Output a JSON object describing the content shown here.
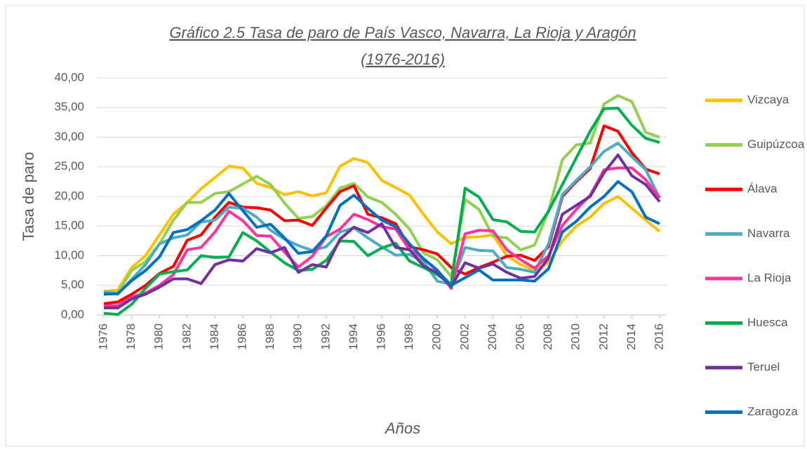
{
  "chart_data": {
    "type": "line",
    "title": [
      "Gráfico 2.5  Tasa de paro de País Vasco, Navarra, La Rioja y Aragón",
      "(1976-2016)"
    ],
    "x_label": "Años",
    "y_label": "Tasa de paro",
    "x": [
      1976,
      1977,
      1978,
      1979,
      1980,
      1981,
      1982,
      1983,
      1984,
      1985,
      1986,
      1987,
      1988,
      1989,
      1990,
      1991,
      1992,
      1993,
      1994,
      1995,
      1996,
      1997,
      1998,
      1999,
      2000,
      2001,
      2002,
      2003,
      2004,
      2005,
      2006,
      2007,
      2008,
      2009,
      2010,
      2011,
      2012,
      2013,
      2014,
      2015,
      2016
    ],
    "xlim": [
      1976,
      2016
    ],
    "xticks": [
      1976,
      1978,
      1980,
      1982,
      1984,
      1986,
      1988,
      1990,
      1992,
      1994,
      1996,
      1998,
      2000,
      2002,
      2004,
      2006,
      2008,
      2010,
      2012,
      2014,
      2016
    ],
    "ylim": [
      0,
      40
    ],
    "yticks": [
      {
        "value": 0,
        "label": "0,00"
      },
      {
        "value": 5,
        "label": "5,00"
      },
      {
        "value": 10,
        "label": "10,00"
      },
      {
        "value": 15,
        "label": "15,00"
      },
      {
        "value": 20,
        "label": "20,00"
      },
      {
        "value": 25,
        "label": "25,00"
      },
      {
        "value": 30,
        "label": "30,00"
      },
      {
        "value": 35,
        "label": "35,00"
      },
      {
        "value": 40,
        "label": "40,00"
      }
    ],
    "grid": true,
    "legend": "right",
    "series": [
      {
        "name": "Vizcaya",
        "color": "#ffc000",
        "values": [
          4.0,
          4.2,
          8,
          10,
          13.5,
          17,
          19,
          21.3,
          23.2,
          25.1,
          24.8,
          22.2,
          21.5,
          20.3,
          20.8,
          20.1,
          20.6,
          25.1,
          26.4,
          25.7,
          22.7,
          21.5,
          20.2,
          17,
          14,
          12,
          13.1,
          13.2,
          13.5,
          10,
          8.5,
          7.5,
          8.8,
          12.5,
          15,
          16.5,
          18.8,
          20,
          18,
          16,
          14.1
        ]
      },
      {
        "name": "Guipúzcoa",
        "color": "#92d050",
        "values": [
          3.9,
          3.8,
          7.5,
          9,
          12,
          16,
          19,
          19,
          20.5,
          20.8,
          22.1,
          23.4,
          22,
          18.9,
          16.3,
          16.6,
          18.4,
          21.4,
          22.2,
          19.9,
          19,
          17,
          14.5,
          10.5,
          9.3,
          6.5,
          19.5,
          17.8,
          13.3,
          13,
          11,
          11.8,
          17.5,
          26.2,
          28.7,
          29,
          35.6,
          37,
          36,
          30.8,
          30
        ]
      },
      {
        "name": "Álava",
        "color": "#ff0000",
        "values": [
          1.9,
          2.2,
          3.5,
          5,
          7,
          8.2,
          12.6,
          13.5,
          16.5,
          19,
          18.2,
          18.1,
          17.7,
          15.9,
          16,
          15.1,
          18,
          20.8,
          21.8,
          17,
          16.4,
          15.4,
          11.5,
          11,
          10.3,
          8,
          6.9,
          8,
          8.9,
          9.9,
          10.1,
          9.2,
          11.5,
          20,
          22.5,
          24.7,
          31.9,
          31,
          27.4,
          24.6,
          23.8
        ]
      },
      {
        "name": "Navarra",
        "color": "#4bacc6",
        "values": [
          3.9,
          3.5,
          6,
          8.5,
          12,
          13,
          13.5,
          15.7,
          16,
          18.2,
          18,
          16.5,
          14.3,
          12.8,
          11.7,
          10.9,
          11.5,
          14,
          14.7,
          13,
          11.5,
          10.1,
          10.2,
          9,
          5.7,
          5.2,
          11.4,
          10.9,
          10.8,
          8,
          7.7,
          7.2,
          12,
          20.3,
          22.7,
          25,
          27.6,
          29,
          26.7,
          24.5,
          19.7
        ]
      },
      {
        "name": "La Rioja",
        "color": "#ff3399",
        "values": [
          1.5,
          1.6,
          3,
          3.7,
          5,
          6.8,
          11,
          11.4,
          14,
          17.5,
          15.9,
          13.4,
          13.3,
          10.6,
          8.1,
          9.9,
          13.2,
          14.5,
          17,
          16.1,
          14.9,
          14.5,
          11,
          9.5,
          7.6,
          4.5,
          13.7,
          14.3,
          14.2,
          11,
          9.3,
          7.9,
          10,
          15.1,
          17.8,
          20.2,
          24.5,
          24.8,
          24.8,
          22.8,
          19.8
        ]
      },
      {
        "name": "Huesca",
        "color": "#00b050",
        "values": [
          0.3,
          0.1,
          1.8,
          4.5,
          6.9,
          7.3,
          7.6,
          10,
          9.7,
          9.8,
          13.9,
          12.5,
          10.6,
          8.8,
          7.5,
          7.7,
          9.2,
          12.5,
          12.4,
          10,
          11.3,
          12.1,
          9.1,
          8,
          6.8,
          5.2,
          21.4,
          19.9,
          16.1,
          15.7,
          14.1,
          14,
          17.5,
          22,
          26.5,
          31,
          34.8,
          34.9,
          32,
          29.8,
          29.1
        ]
      },
      {
        "name": "Teruel",
        "color": "#7030a0",
        "values": [
          1.2,
          1.2,
          2.7,
          3.5,
          4.7,
          6.1,
          6.1,
          5.3,
          8.5,
          9.3,
          9.1,
          11.2,
          10.5,
          11.4,
          7.2,
          8.5,
          8.1,
          12.8,
          14.8,
          13.9,
          15.4,
          11.4,
          11,
          8.3,
          7.1,
          4.8,
          8.8,
          7.9,
          8.6,
          7.2,
          6.2,
          6.5,
          9.6,
          17,
          18.5,
          20,
          24,
          27,
          23.5,
          22,
          19.1
        ]
      },
      {
        "name": "Zaragoza",
        "color": "#0070c0",
        "values": [
          3.5,
          3.6,
          5.8,
          7.5,
          9.8,
          13.9,
          14.4,
          15.9,
          17.7,
          20.5,
          17.6,
          14.8,
          15.3,
          13,
          10.4,
          10.7,
          13.3,
          18.5,
          20.2,
          18,
          16,
          14.9,
          12,
          9.5,
          7.5,
          5,
          6.3,
          7.6,
          5.9,
          5.9,
          5.9,
          5.7,
          7.8,
          14,
          15.8,
          18.2,
          20,
          22.5,
          20.8,
          16.5,
          15.4
        ]
      }
    ]
  }
}
